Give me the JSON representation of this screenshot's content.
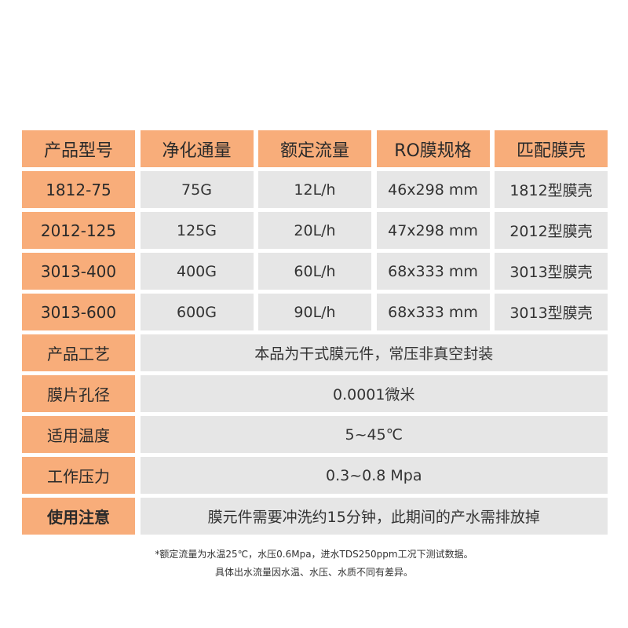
{
  "header": [
    "产品型号",
    "净化通量",
    "额定流量",
    "RO膜规格",
    "匹配膜壳"
  ],
  "rows": [
    [
      "1812-75",
      "75G",
      "12L/h",
      "46x298 mm",
      "1812型膜壳"
    ],
    [
      "2012-125",
      "125G",
      "20L/h",
      "47x298 mm",
      "2012型膜壳"
    ],
    [
      "3013-400",
      "400G",
      "60L/h",
      "68x333 mm",
      "3013型膜壳"
    ],
    [
      "3013-600",
      "600G",
      "90L/h",
      "68x333 mm",
      "3013型膜壳"
    ]
  ],
  "details": [
    {
      "label": "产品工艺",
      "value": "本品为干式膜元件，常压非真空封装"
    },
    {
      "label": "膜片孔径",
      "value": "0.0001微米"
    },
    {
      "label": "适用温度",
      "value": "5~45℃"
    },
    {
      "label": "工作压力",
      "value": "0.3~0.8 Mpa"
    },
    {
      "label": "使用注意",
      "value": "膜元件需要冲洗约15分钟，此期间的产水需排放掉"
    }
  ],
  "footnote": [
    "*额定流量为水温25℃，水压0.6Mpa，进水TDS250ppm工况下测试数据。",
    "具体出水流量因水温、水压、水质不同有差异。"
  ],
  "colors": {
    "header_bg": "#f8ad7a",
    "cell_bg": "#e6e6e6",
    "text": "#333333"
  }
}
